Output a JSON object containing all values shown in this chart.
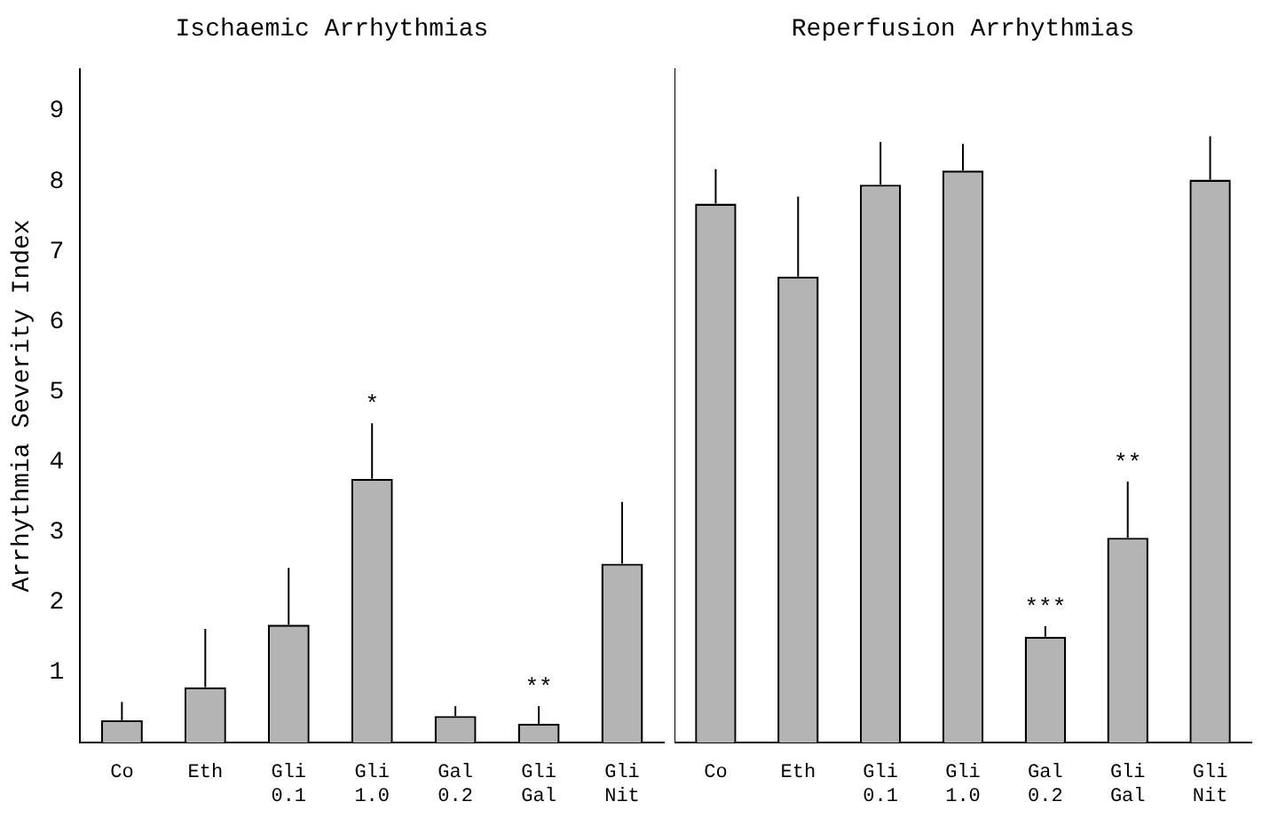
{
  "chart_data": [
    {
      "type": "bar",
      "title": "Ischaemic Arrhythmias",
      "ylabel": "Arrhythmia Severity Index",
      "categories": [
        "Co",
        "Eth",
        "Gli 0.1",
        "Gli 1.0",
        "Gal 0.2",
        "Gli Gal",
        "Gli Nit"
      ],
      "values": [
        0.32,
        0.79,
        1.68,
        3.76,
        0.38,
        0.27,
        2.55
      ],
      "errors": [
        [
          0.32,
          0.58
        ],
        [
          0.79,
          1.62
        ],
        [
          1.68,
          2.49
        ],
        [
          3.76,
          4.55
        ],
        [
          0.38,
          0.52
        ],
        [
          0.27,
          0.52
        ],
        [
          2.55,
          3.43
        ]
      ],
      "color": "#b4b4b4",
      "ylim": [
        0,
        9.6
      ],
      "yticks": [
        1,
        2,
        3,
        4,
        5,
        6,
        7,
        8,
        9
      ],
      "grid": false,
      "legend": false,
      "annotations": [
        {
          "text": "*",
          "x": "Gli 1.0",
          "y": 4.55
        },
        {
          "text": "**",
          "x": "Gli Gal",
          "y": 0.52
        }
      ]
    },
    {
      "type": "bar",
      "title": "Reperfusion Arrhythmias",
      "categories": [
        "Co",
        "Eth",
        "Gli 0.1",
        "Gli 1.0",
        "Gal 0.2",
        "Gli Gal",
        "Gli Nit"
      ],
      "values": [
        7.68,
        6.64,
        7.95,
        8.15,
        1.51,
        2.92,
        8.02
      ],
      "errors": [
        [
          7.68,
          8.17
        ],
        [
          6.64,
          7.78
        ],
        [
          7.95,
          8.56
        ],
        [
          8.15,
          8.53
        ],
        [
          1.51,
          1.66
        ],
        [
          2.92,
          3.72
        ],
        [
          8.02,
          8.64
        ]
      ],
      "color": "#b4b4b4",
      "ylim": [
        0,
        9.6
      ],
      "yticks": [
        1,
        2,
        3,
        4,
        5,
        6,
        7,
        8,
        9
      ],
      "tick_labels": "x",
      "grid": false,
      "legend": false,
      "annotations": [
        {
          "text": "***",
          "x": "Gal 0.2",
          "y": 1.66
        },
        {
          "text": "**",
          "x": "Gli Gal",
          "y": 3.72
        }
      ]
    }
  ]
}
